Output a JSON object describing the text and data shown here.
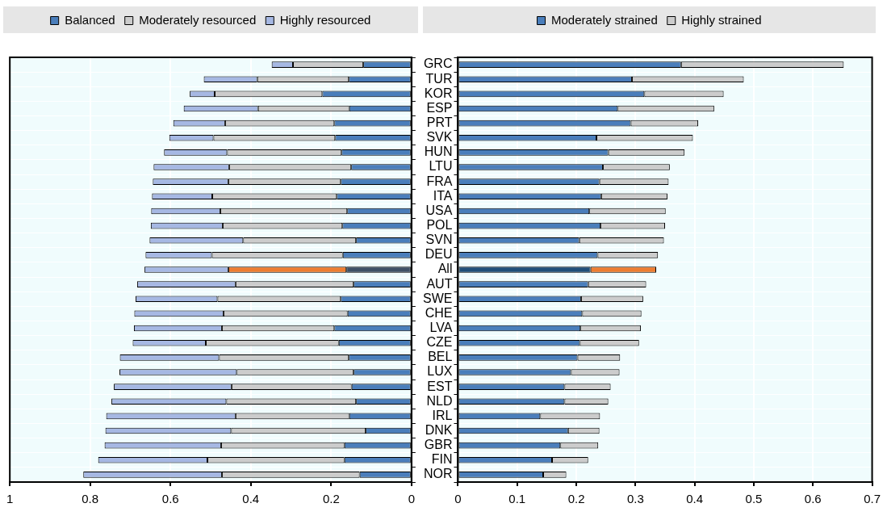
{
  "chart_data": [
    {
      "type": "bar",
      "orientation": "horizontal",
      "stacked": true,
      "legend": "top",
      "grid": true,
      "tick_labels": "x",
      "xlim": [
        1,
        0
      ],
      "xticks": [
        1,
        0.8,
        0.6,
        0.4,
        0.2,
        0
      ],
      "categories": [
        null,
        null,
        null,
        null,
        null,
        null,
        null,
        null,
        null,
        null,
        null,
        null,
        null,
        null,
        null,
        null,
        null,
        null,
        null,
        null,
        null,
        null,
        null,
        null,
        null,
        null,
        null,
        null,
        null
      ],
      "series": [
        {
          "name": "Balanced",
          "color": "#4a7ebb",
          "colors": [
            "#4a7ebb",
            "#4a7ebb",
            "#4a7ebb",
            "#4a7ebb",
            "#4a7ebb",
            "#4a7ebb",
            "#4a7ebb",
            "#4a7ebb",
            "#4a7ebb",
            "#4a7ebb",
            "#4a7ebb",
            "#4a7ebb",
            "#4a7ebb",
            "#4a7ebb",
            "#3e5066",
            "#4a7ebb",
            "#4a7ebb",
            "#4a7ebb",
            "#4a7ebb",
            "#4a7ebb",
            "#4a7ebb",
            "#4a7ebb",
            "#4a7ebb",
            "#4a7ebb",
            "#4a7ebb",
            "#4a7ebb",
            "#4a7ebb",
            "#4a7ebb",
            "#4a7ebb"
          ],
          "values": [
            0.12,
            0.156,
            0.222,
            0.155,
            0.192,
            0.19,
            0.174,
            0.15,
            0.176,
            0.186,
            0.16,
            0.172,
            0.138,
            0.171,
            0.162,
            0.144,
            0.176,
            0.159,
            0.192,
            0.181,
            0.156,
            0.144,
            0.149,
            0.138,
            0.155,
            0.114,
            0.167,
            0.167,
            0.129
          ]
        },
        {
          "name": "Moderately resourced",
          "color": "#cccccc",
          "colors": [
            "#cccccc",
            "#cccccc",
            "#cccccc",
            "#cccccc",
            "#cccccc",
            "#cccccc",
            "#cccccc",
            "#cccccc",
            "#cccccc",
            "#cccccc",
            "#cccccc",
            "#cccccc",
            "#cccccc",
            "#cccccc",
            "#ed7d31",
            "#cccccc",
            "#cccccc",
            "#cccccc",
            "#cccccc",
            "#cccccc",
            "#cccccc",
            "#cccccc",
            "#cccccc",
            "#cccccc",
            "#cccccc",
            "#cccccc",
            "#cccccc",
            "#cccccc",
            "#cccccc"
          ],
          "values": [
            0.175,
            0.228,
            0.268,
            0.227,
            0.272,
            0.303,
            0.285,
            0.304,
            0.28,
            0.31,
            0.316,
            0.298,
            0.281,
            0.326,
            0.294,
            0.294,
            0.307,
            0.309,
            0.28,
            0.331,
            0.323,
            0.291,
            0.299,
            0.323,
            0.283,
            0.335,
            0.307,
            0.341,
            0.343
          ]
        },
        {
          "name": "Highly resourced",
          "color": "#a6b8e3",
          "values": [
            0.053,
            0.133,
            0.062,
            0.185,
            0.129,
            0.11,
            0.157,
            0.188,
            0.188,
            0.15,
            0.172,
            0.179,
            0.233,
            0.165,
            0.209,
            0.245,
            0.204,
            0.222,
            0.219,
            0.182,
            0.247,
            0.292,
            0.293,
            0.286,
            0.322,
            0.313,
            0.29,
            0.272,
            0.345
          ]
        }
      ]
    },
    {
      "type": "bar",
      "orientation": "horizontal",
      "stacked": true,
      "legend": "top",
      "grid": true,
      "xlim": [
        0,
        0.7
      ],
      "xticks": [
        0,
        0.1,
        0.2,
        0.3,
        0.4,
        0.5,
        0.6,
        0.7
      ],
      "categories": [
        "GRC",
        "TUR",
        "KOR",
        "ESP",
        "PRT",
        "SVK",
        "HUN",
        "LTU",
        "FRA",
        "ITA",
        "USA",
        "POL",
        "SVN",
        "DEU",
        "All",
        "AUT",
        "SWE",
        "CHE",
        "LVA",
        "CZE",
        "BEL",
        "LUX",
        "EST",
        "NLD",
        "IRL",
        "DNK",
        "GBR",
        "FIN",
        "NOR"
      ],
      "series": [
        {
          "name": "Moderately strained",
          "color": "#4a7ebb",
          "colors": [
            "#4a7ebb",
            "#4a7ebb",
            "#4a7ebb",
            "#4a7ebb",
            "#4a7ebb",
            "#4a7ebb",
            "#4a7ebb",
            "#4a7ebb",
            "#4a7ebb",
            "#4a7ebb",
            "#4a7ebb",
            "#4a7ebb",
            "#4a7ebb",
            "#4a7ebb",
            "#1f4e79",
            "#4a7ebb",
            "#4a7ebb",
            "#4a7ebb",
            "#4a7ebb",
            "#4a7ebb",
            "#4a7ebb",
            "#4a7ebb",
            "#4a7ebb",
            "#4a7ebb",
            "#4a7ebb",
            "#4a7ebb",
            "#4a7ebb",
            "#4a7ebb",
            "#4a7ebb"
          ],
          "values": [
            0.377,
            0.294,
            0.315,
            0.27,
            0.292,
            0.234,
            0.254,
            0.245,
            0.239,
            0.242,
            0.222,
            0.241,
            0.205,
            0.236,
            0.224,
            0.22,
            0.208,
            0.21,
            0.207,
            0.206,
            0.202,
            0.191,
            0.18,
            0.18,
            0.139,
            0.186,
            0.173,
            0.159,
            0.144
          ]
        },
        {
          "name": "Highly strained",
          "color": "#cccccc",
          "colors": [
            "#cccccc",
            "#cccccc",
            "#cccccc",
            "#cccccc",
            "#cccccc",
            "#cccccc",
            "#cccccc",
            "#cccccc",
            "#cccccc",
            "#cccccc",
            "#cccccc",
            "#cccccc",
            "#cccccc",
            "#cccccc",
            "#ed7d31",
            "#cccccc",
            "#cccccc",
            "#cccccc",
            "#cccccc",
            "#cccccc",
            "#cccccc",
            "#cccccc",
            "#cccccc",
            "#cccccc",
            "#cccccc",
            "#cccccc",
            "#cccccc",
            "#cccccc",
            "#cccccc"
          ],
          "values": [
            0.275,
            0.189,
            0.134,
            0.163,
            0.114,
            0.163,
            0.129,
            0.113,
            0.117,
            0.112,
            0.129,
            0.109,
            0.143,
            0.102,
            0.111,
            0.098,
            0.105,
            0.1,
            0.102,
            0.1,
            0.072,
            0.082,
            0.078,
            0.074,
            0.101,
            0.053,
            0.064,
            0.061,
            0.039
          ]
        }
      ]
    }
  ]
}
